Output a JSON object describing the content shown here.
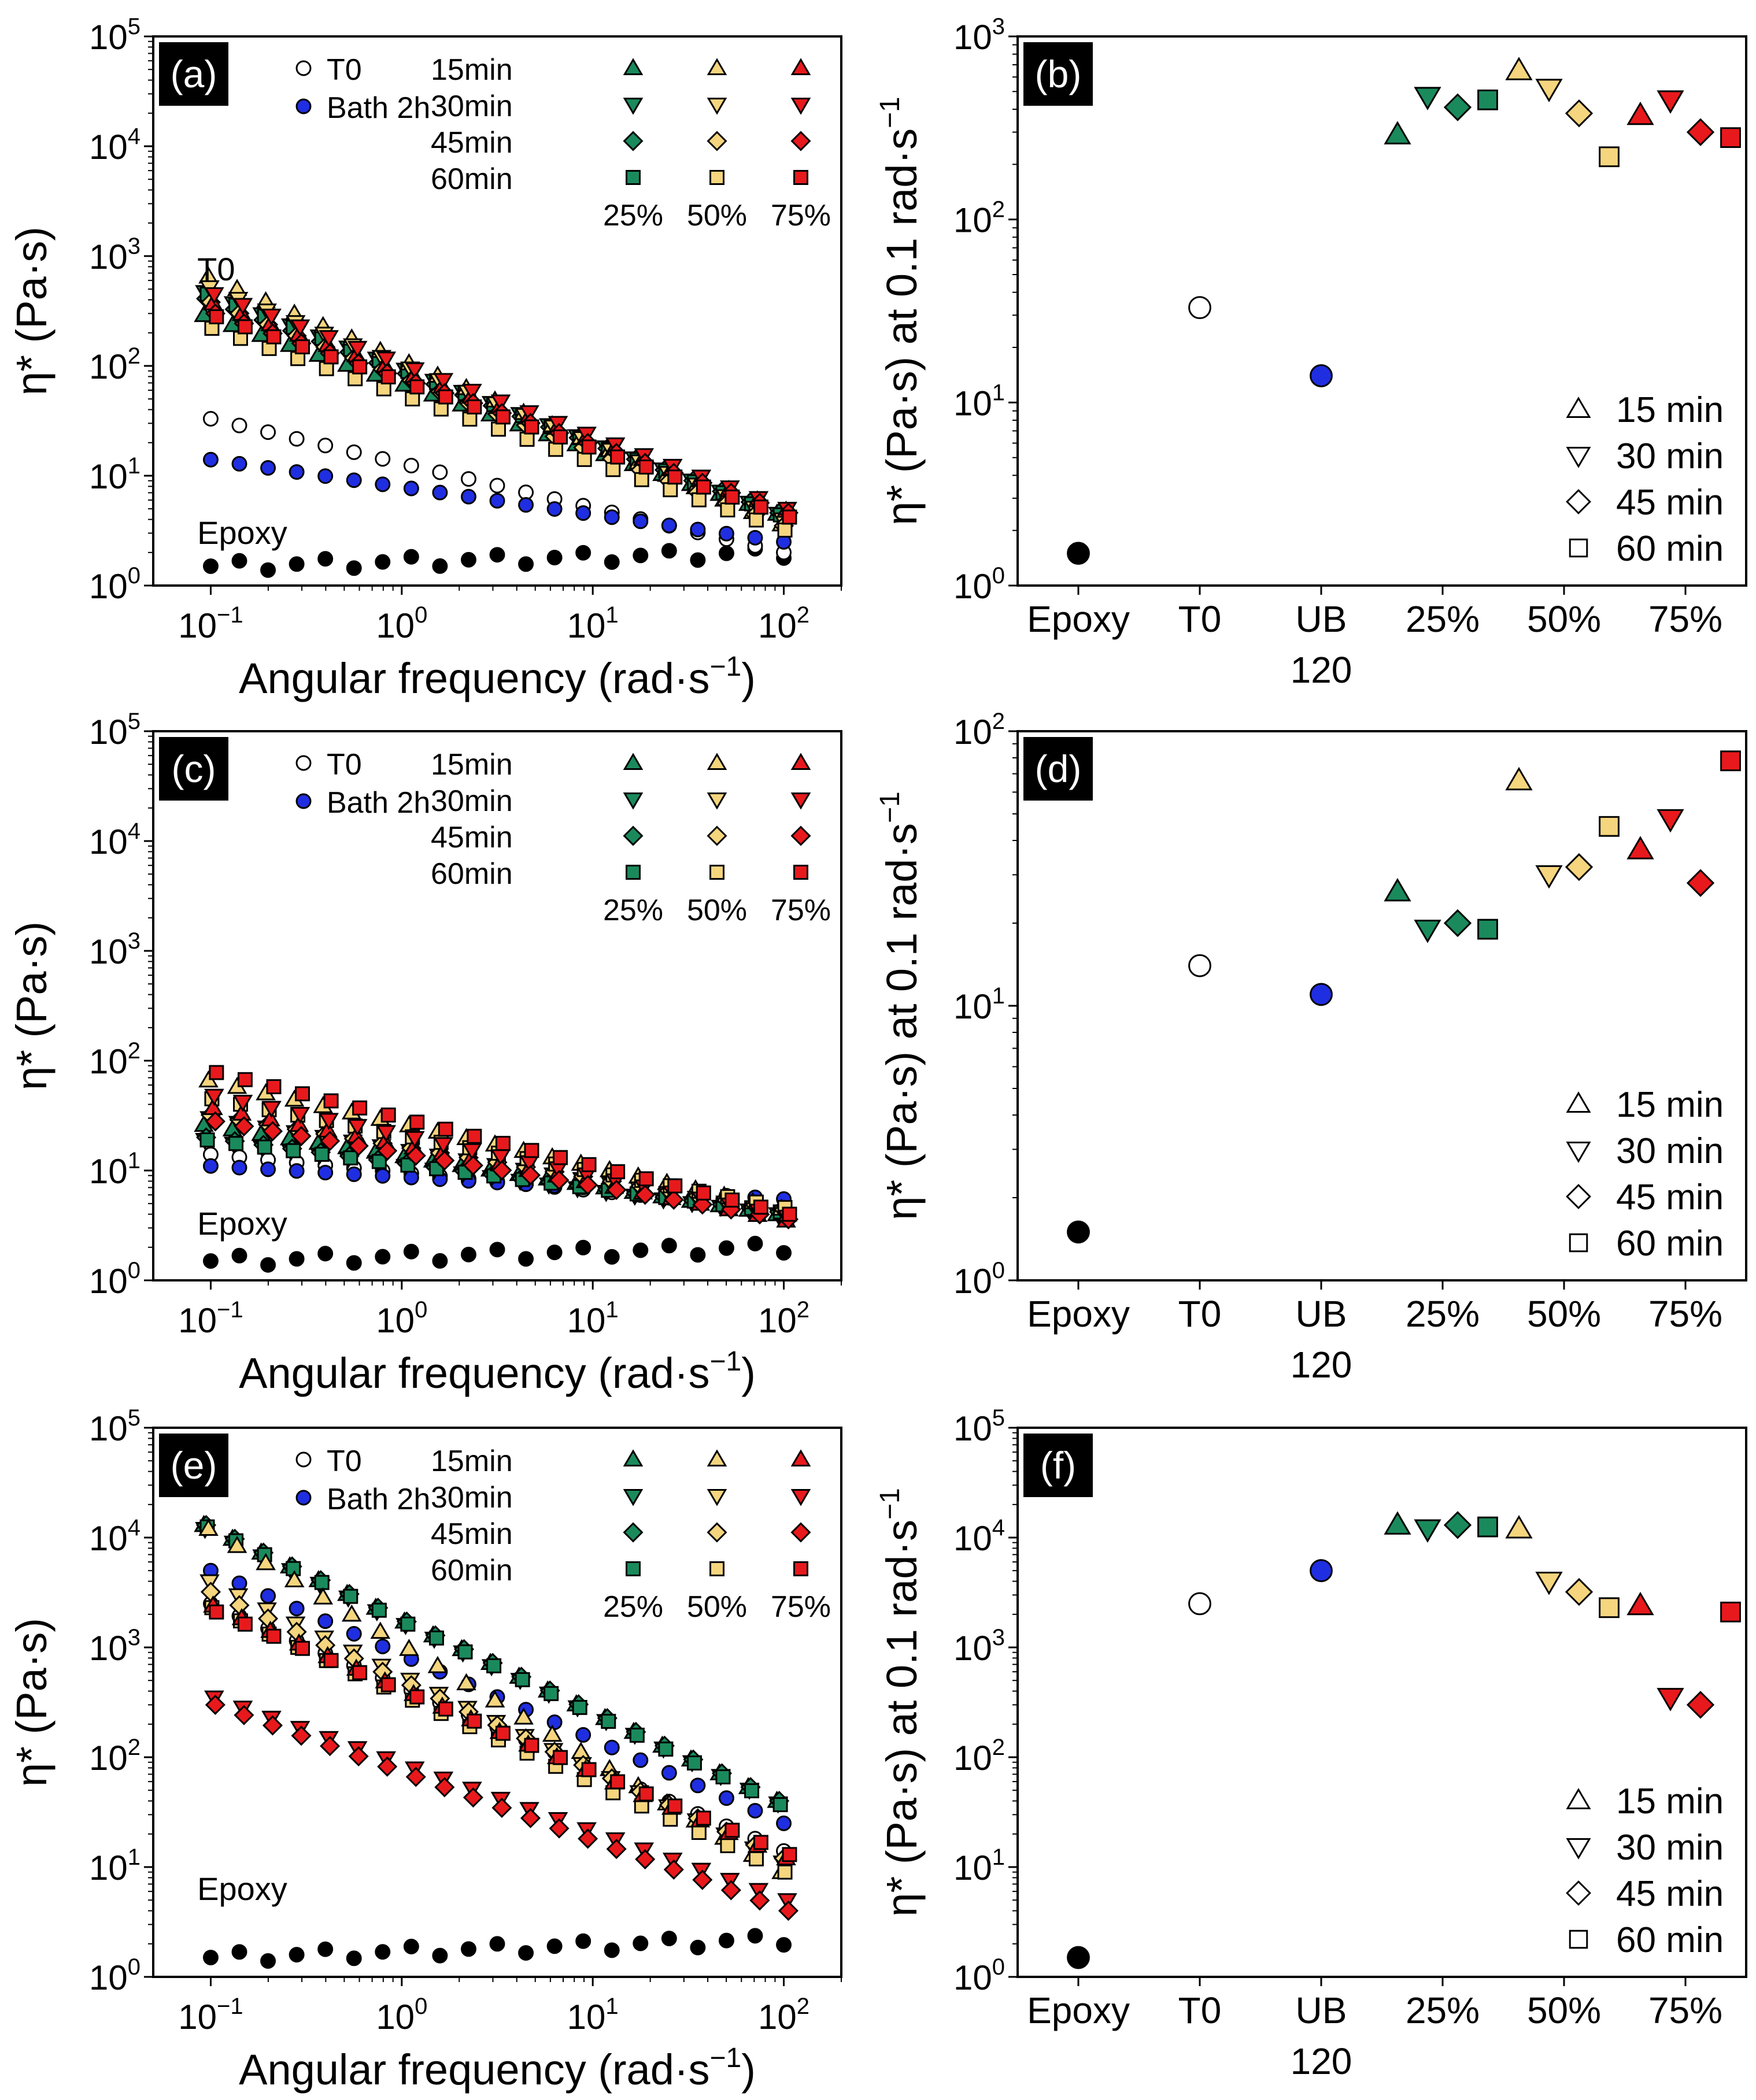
{
  "chart_data": [
    {
      "id": "a",
      "panel_label": "(a)",
      "type": "scatter",
      "x_scale": "log",
      "y_scale": "log",
      "xlabel": "Angular frequency (rad·s⁻¹)",
      "ylabel": "η* (Pa·s)",
      "xlim": [
        0.05,
        200
      ],
      "ylim": [
        1,
        100000
      ],
      "xticks": [
        0.1,
        1,
        10,
        100
      ],
      "xtick_labels": [
        "10⁻¹",
        "10⁰",
        "10¹",
        "10²"
      ],
      "yticks": [
        1,
        10,
        100,
        1000,
        10000,
        100000
      ],
      "ytick_labels": [
        "10⁰",
        "10¹",
        "10²",
        "10³",
        "10⁴",
        "10⁵"
      ],
      "annotations": [
        {
          "text": "Epoxy",
          "x": 0.085,
          "y": 2.4
        },
        {
          "text": "T0",
          "x": 0.085,
          "y": 600
        }
      ],
      "legend": {
        "left": [
          {
            "text": "T0",
            "marker": "circle-open"
          },
          {
            "text": "Bath 2h",
            "marker": "circle-blue"
          }
        ],
        "rows": [
          "15min",
          "30min",
          "45min",
          "60min"
        ],
        "cols": [
          "25%",
          "50%",
          "75%"
        ]
      },
      "curves": {
        "epoxy": {
          "start": 1.5,
          "end": 2.0,
          "ripple": 0.12
        },
        "t0": {
          "start": 33,
          "end": 2.0
        },
        "bath": {
          "start": 14,
          "end": 2.5
        },
        "series": {
          "25%": {
            "color": "#1a8a5c",
            "15min": [
              290,
              4.5
            ],
            "30min": [
              470,
              4.5
            ],
            "45min": [
              410,
              4.6
            ],
            "60min": [
              450,
              4.4
            ]
          },
          "50%": {
            "color": "#f5d57e",
            "15min": [
              650,
              3.6
            ],
            "30min": [
              520,
              4.0
            ],
            "45min": [
              380,
              3.5
            ],
            "60min": [
              220,
              3.2
            ]
          },
          "75%": {
            "color": "#e8191c",
            "15min": [
              370,
              4.8
            ],
            "30min": [
              450,
              5.0
            ],
            "45min": [
              300,
              4.6
            ],
            "60min": [
              280,
              4.2
            ]
          }
        }
      }
    },
    {
      "id": "b",
      "panel_label": "(b)",
      "type": "scatter",
      "x_scale": "category",
      "y_scale": "log",
      "xlabel": "",
      "ylabel": "η* (Pa·s) at 0.1 rad·s⁻¹",
      "ylim": [
        1,
        1000
      ],
      "yticks": [
        1,
        10,
        100,
        1000
      ],
      "ytick_labels": [
        "10⁰",
        "10¹",
        "10²",
        "10³"
      ],
      "categories": [
        "Epoxy",
        "T0",
        "UB\n120",
        "25%",
        "50%",
        "75%"
      ],
      "points": [
        {
          "category": "Epoxy",
          "value": 1.5,
          "marker": "circle",
          "color": "#000000"
        },
        {
          "category": "T0",
          "value": 33,
          "marker": "circle-open",
          "color": "#ffffff"
        },
        {
          "category": "UB\n120",
          "value": 14,
          "marker": "circle",
          "color": "#1f2ee0"
        },
        {
          "category": "25%",
          "time": "15 min",
          "value": 290,
          "color": "#1a8a5c"
        },
        {
          "category": "25%",
          "time": "30 min",
          "value": 470,
          "color": "#1a8a5c"
        },
        {
          "category": "25%",
          "time": "45 min",
          "value": 410,
          "color": "#1a8a5c"
        },
        {
          "category": "25%",
          "time": "60 min",
          "value": 450,
          "color": "#1a8a5c"
        },
        {
          "category": "50%",
          "time": "15 min",
          "value": 650,
          "color": "#f5d57e"
        },
        {
          "category": "50%",
          "time": "30 min",
          "value": 520,
          "color": "#f5d57e"
        },
        {
          "category": "50%",
          "time": "45 min",
          "value": 380,
          "color": "#f5d57e"
        },
        {
          "category": "50%",
          "time": "60 min",
          "value": 220,
          "color": "#f5d57e"
        },
        {
          "category": "75%",
          "time": "15 min",
          "value": 370,
          "color": "#e8191c"
        },
        {
          "category": "75%",
          "time": "30 min",
          "value": 450,
          "color": "#e8191c"
        },
        {
          "category": "75%",
          "time": "45 min",
          "value": 300,
          "color": "#e8191c"
        },
        {
          "category": "75%",
          "time": "60 min",
          "value": 280,
          "color": "#e8191c"
        }
      ],
      "legend": [
        "15 min",
        "30 min",
        "45 min",
        "60 min"
      ]
    },
    {
      "id": "c",
      "panel_label": "(c)",
      "type": "scatter",
      "x_scale": "log",
      "y_scale": "log",
      "xlabel": "Angular frequency (rad·s⁻¹)",
      "ylabel": "η* (Pa·s)",
      "xlim": [
        0.05,
        200
      ],
      "ylim": [
        1,
        100000
      ],
      "xticks": [
        0.1,
        1,
        10,
        100
      ],
      "xtick_labels": [
        "10⁻¹",
        "10⁰",
        "10¹",
        "10²"
      ],
      "yticks": [
        1,
        10,
        100,
        1000,
        10000,
        100000
      ],
      "ytick_labels": [
        "10⁰",
        "10¹",
        "10²",
        "10³",
        "10⁴",
        "10⁵"
      ],
      "annotations": [
        {
          "text": "Epoxy",
          "x": 0.085,
          "y": 2.6
        }
      ],
      "legend": {
        "left": [
          {
            "text": "T0",
            "marker": "circle-open"
          },
          {
            "text": "Bath 2h",
            "marker": "circle-blue"
          }
        ],
        "rows": [
          "15min",
          "30min",
          "45min",
          "60min"
        ],
        "cols": [
          "25%",
          "50%",
          "75%"
        ]
      },
      "curves": {
        "epoxy": {
          "start": 1.5,
          "end": 2.0,
          "ripple": 0.12
        },
        "t0": {
          "start": 14,
          "end": 4.5
        },
        "bath": {
          "start": 11,
          "end": 5.5
        },
        "series": {
          "25%": {
            "color": "#1a8a5c",
            "15min": [
              26,
              4.0
            ],
            "30min": [
              19,
              4.0
            ],
            "45min": [
              20,
              4.2
            ],
            "60min": [
              19,
              4.2
            ]
          },
          "50%": {
            "color": "#f5d57e",
            "15min": [
              66,
              4.5
            ],
            "30min": [
              30,
              4.2
            ],
            "45min": [
              32,
              4.4
            ],
            "60min": [
              45,
              4.6
            ]
          },
          "75%": {
            "color": "#e8191c",
            "15min": [
              37,
              3.5
            ],
            "30min": [
              48,
              3.8
            ],
            "45min": [
              28,
              3.6
            ],
            "60min": [
              78,
              4.0
            ]
          }
        }
      }
    },
    {
      "id": "d",
      "panel_label": "(d)",
      "type": "scatter",
      "x_scale": "category",
      "y_scale": "log",
      "xlabel": "",
      "ylabel": "η* (Pa·s) at 0.1 rad·s⁻¹",
      "ylim": [
        1,
        100
      ],
      "yticks": [
        1,
        10,
        100
      ],
      "ytick_labels": [
        "10⁰",
        "10¹",
        "10²"
      ],
      "categories": [
        "Epoxy",
        "T0",
        "UB\n120",
        "25%",
        "50%",
        "75%"
      ],
      "points": [
        {
          "category": "Epoxy",
          "value": 1.5,
          "marker": "circle",
          "color": "#000000"
        },
        {
          "category": "T0",
          "value": 14,
          "marker": "circle-open",
          "color": "#ffffff"
        },
        {
          "category": "UB\n120",
          "value": 11,
          "marker": "circle",
          "color": "#1f2ee0"
        },
        {
          "category": "25%",
          "time": "15 min",
          "value": 26,
          "color": "#1a8a5c"
        },
        {
          "category": "25%",
          "time": "30 min",
          "value": 19,
          "color": "#1a8a5c"
        },
        {
          "category": "25%",
          "time": "45 min",
          "value": 20,
          "color": "#1a8a5c"
        },
        {
          "category": "25%",
          "time": "60 min",
          "value": 19,
          "color": "#1a8a5c"
        },
        {
          "category": "50%",
          "time": "15 min",
          "value": 66,
          "color": "#f5d57e"
        },
        {
          "category": "50%",
          "time": "30 min",
          "value": 30,
          "color": "#f5d57e"
        },
        {
          "category": "50%",
          "time": "45 min",
          "value": 32,
          "color": "#f5d57e"
        },
        {
          "category": "50%",
          "time": "60 min",
          "value": 45,
          "color": "#f5d57e"
        },
        {
          "category": "75%",
          "time": "15 min",
          "value": 37,
          "color": "#e8191c"
        },
        {
          "category": "75%",
          "time": "30 min",
          "value": 48,
          "color": "#e8191c"
        },
        {
          "category": "75%",
          "time": "45 min",
          "value": 28,
          "color": "#e8191c"
        },
        {
          "category": "75%",
          "time": "60 min",
          "value": 78,
          "color": "#e8191c"
        }
      ],
      "legend": [
        "15 min",
        "30 min",
        "45 min",
        "60 min"
      ]
    },
    {
      "id": "e",
      "panel_label": "(e)",
      "type": "scatter",
      "x_scale": "log",
      "y_scale": "log",
      "xlabel": "Angular frequency (rad·s⁻¹)",
      "ylabel": "η* (Pa·s)",
      "xlim": [
        0.05,
        200
      ],
      "ylim": [
        1,
        100000
      ],
      "xticks": [
        0.1,
        1,
        10,
        100
      ],
      "xtick_labels": [
        "10⁻¹",
        "10⁰",
        "10¹",
        "10²"
      ],
      "yticks": [
        1,
        10,
        100,
        1000,
        10000,
        100000
      ],
      "ytick_labels": [
        "10⁰",
        "10¹",
        "10²",
        "10³",
        "10⁴",
        "10⁵"
      ],
      "annotations": [
        {
          "text": "Epoxy",
          "x": 0.085,
          "y": 5
        }
      ],
      "legend": {
        "left": [
          {
            "text": "T0",
            "marker": "circle-open"
          },
          {
            "text": "Bath 2h",
            "marker": "circle-blue"
          }
        ],
        "rows": [
          "15min",
          "30min",
          "45min",
          "60min"
        ],
        "cols": [
          "25%",
          "50%",
          "75%"
        ]
      },
      "curves": {
        "epoxy": {
          "start": 1.5,
          "end": 2.2,
          "ripple": 0.12
        },
        "t0": {
          "start": 2500,
          "end": 14
        },
        "bath": {
          "start": 5000,
          "end": 25
        },
        "series": {
          "25%": {
            "color": "#1a8a5c",
            "15min": [
              13000,
              40
            ],
            "30min": [
              12000,
              38
            ],
            "45min": [
              13000,
              40
            ],
            "60min": [
              12500,
              37
            ]
          },
          "50%": {
            "color": "#f5d57e",
            "15min": [
              12000,
              9
            ],
            "30min": [
              4000,
              11
            ],
            "45min": [
              3200,
              12
            ],
            "60min": [
              2300,
              9
            ]
          },
          "75%": {
            "color": "#e8191c",
            "15min": [
              2400,
              12
            ],
            "30min": [
              350,
              5
            ],
            "45min": [
              300,
              4
            ],
            "60min": [
              2100,
              13
            ]
          }
        }
      }
    },
    {
      "id": "f",
      "panel_label": "(f)",
      "type": "scatter",
      "x_scale": "category",
      "y_scale": "log",
      "xlabel": "",
      "ylabel": "η* (Pa·s) at 0.1 rad·s⁻¹",
      "ylim": [
        1,
        100000
      ],
      "yticks": [
        1,
        10,
        100,
        1000,
        10000,
        100000
      ],
      "ytick_labels": [
        "10⁰",
        "10¹",
        "10²",
        "10³",
        "10⁴",
        "10⁵"
      ],
      "categories": [
        "Epoxy",
        "T0",
        "UB\n120",
        "25%",
        "50%",
        "75%"
      ],
      "points": [
        {
          "category": "Epoxy",
          "value": 1.5,
          "marker": "circle",
          "color": "#000000"
        },
        {
          "category": "T0",
          "value": 2500,
          "marker": "circle-open",
          "color": "#ffffff"
        },
        {
          "category": "UB\n120",
          "value": 5000,
          "marker": "circle",
          "color": "#1f2ee0"
        },
        {
          "category": "25%",
          "time": "15 min",
          "value": 13000,
          "color": "#1a8a5c"
        },
        {
          "category": "25%",
          "time": "30 min",
          "value": 12000,
          "color": "#1a8a5c"
        },
        {
          "category": "25%",
          "time": "45 min",
          "value": 13000,
          "color": "#1a8a5c"
        },
        {
          "category": "25%",
          "time": "60 min",
          "value": 12500,
          "color": "#1a8a5c"
        },
        {
          "category": "50%",
          "time": "15 min",
          "value": 12000,
          "color": "#f5d57e"
        },
        {
          "category": "50%",
          "time": "30 min",
          "value": 4000,
          "color": "#f5d57e"
        },
        {
          "category": "50%",
          "time": "45 min",
          "value": 3200,
          "color": "#f5d57e"
        },
        {
          "category": "50%",
          "time": "60 min",
          "value": 2300,
          "color": "#f5d57e"
        },
        {
          "category": "75%",
          "time": "15 min",
          "value": 2400,
          "color": "#e8191c"
        },
        {
          "category": "75%",
          "time": "30 min",
          "value": 350,
          "color": "#e8191c"
        },
        {
          "category": "75%",
          "time": "45 min",
          "value": 300,
          "color": "#e8191c"
        },
        {
          "category": "75%",
          "time": "60 min",
          "value": 2100,
          "color": "#e8191c"
        }
      ],
      "legend": [
        "15 min",
        "30 min",
        "45 min",
        "60 min"
      ]
    }
  ]
}
